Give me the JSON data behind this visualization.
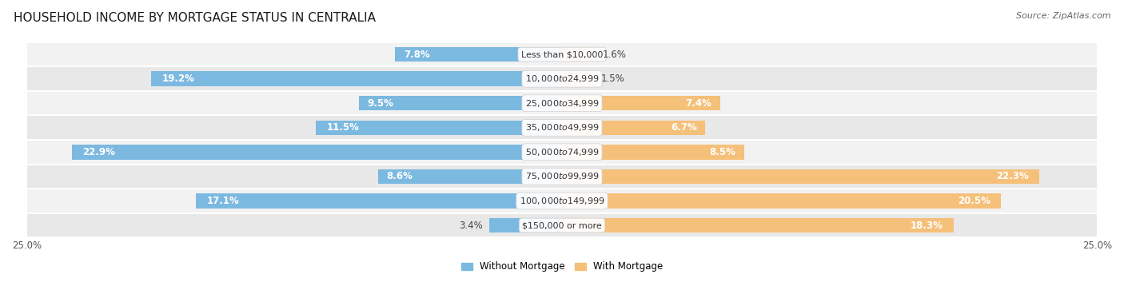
{
  "title": "HOUSEHOLD INCOME BY MORTGAGE STATUS IN CENTRALIA",
  "source": "Source: ZipAtlas.com",
  "categories": [
    "Less than $10,000",
    "$10,000 to $24,999",
    "$25,000 to $34,999",
    "$35,000 to $49,999",
    "$50,000 to $74,999",
    "$75,000 to $99,999",
    "$100,000 to $149,999",
    "$150,000 or more"
  ],
  "without_mortgage": [
    7.8,
    19.2,
    9.5,
    11.5,
    22.9,
    8.6,
    17.1,
    3.4
  ],
  "with_mortgage": [
    1.6,
    1.5,
    7.4,
    6.7,
    8.5,
    22.3,
    20.5,
    18.3
  ],
  "color_without": "#7cb9e0",
  "color_with": "#f5c07a",
  "row_colors": [
    "#f2f2f2",
    "#e8e8e8"
  ],
  "axis_max": 25.0,
  "legend_without": "Without Mortgage",
  "legend_with": "With Mortgage",
  "title_fontsize": 11,
  "label_fontsize": 8.5,
  "cat_fontsize": 8.0,
  "axis_label_fontsize": 8.5,
  "source_fontsize": 8
}
